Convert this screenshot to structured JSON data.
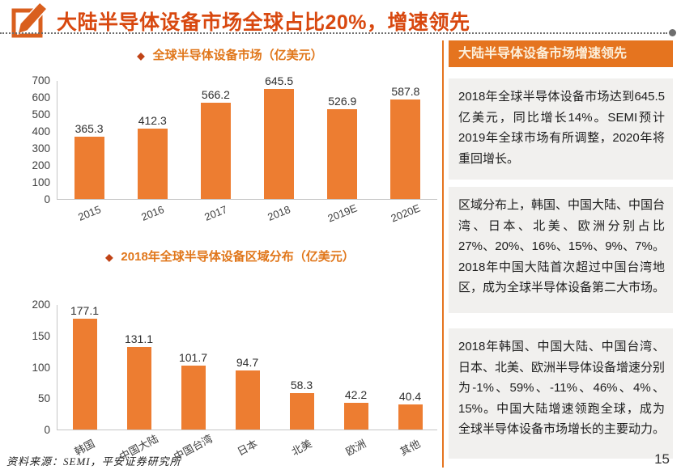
{
  "page": {
    "title": "大陆半导体设备市场全球占比20%，增速领先",
    "source_note": "资料来源：SEMI，平安证券研究所",
    "page_number": "15"
  },
  "icons": {
    "header_icon": "pencil-edit-icon",
    "title_bullet": "◆"
  },
  "chart_data": [
    {
      "type": "bar",
      "title": "全球半导体设备市场（亿美元）",
      "categories": [
        "2015",
        "2016",
        "2017",
        "2018",
        "2019E",
        "2020E"
      ],
      "values": [
        365.3,
        412.3,
        566.2,
        645.5,
        526.9,
        587.8
      ],
      "ylim": [
        0,
        700
      ],
      "yticks": [
        0,
        100,
        200,
        300,
        400,
        500,
        600,
        700
      ],
      "bar_color": "#ED7D31",
      "data_labels": true,
      "grid": false,
      "legend_position": "none"
    },
    {
      "type": "bar",
      "title": "2018年全球半导体设备区域分布（亿美元）",
      "categories": [
        "韩国",
        "中国大陆",
        "中国台湾",
        "日本",
        "北美",
        "欧洲",
        "其他"
      ],
      "values": [
        177.1,
        131.1,
        101.7,
        94.7,
        58.3,
        42.2,
        40.4
      ],
      "ylim": [
        0,
        200
      ],
      "yticks": [
        0,
        50,
        100,
        150,
        200
      ],
      "bar_color": "#ED7D31",
      "data_labels": true,
      "grid": false,
      "legend_position": "none"
    }
  ],
  "right_panel": {
    "header": "大陆半导体设备市场增速领先",
    "paragraphs": [
      "2018年全球半导体设备市场达到645.5亿美元，同比增长14%。SEMI预计2019年全球市场有所调整，2020年将重回增长。",
      "区域分布上，韩国、中国大陆、中国台湾、日本、北美、欧洲分别占比27%、20%、16%、15%、9%、7%。2018年中国大陆首次超过中国台湾地区，成为全球半导体设备第二大市场。",
      "2018年韩国、中国大陆、中国台湾、日本、北美、欧洲半导体设备增速分别为-1%、59%、-11%、46%、4%、15%。中国大陆增速领跑全球，成为全球半导体设备市场增长的主要动力。"
    ]
  },
  "colors": {
    "bar_orange": "#ED7D31",
    "accent_orange": "#E5741F",
    "title_red": "#D8480F",
    "chart_title_orange": "#E0761A",
    "block_gray": "#F1F0EE"
  }
}
